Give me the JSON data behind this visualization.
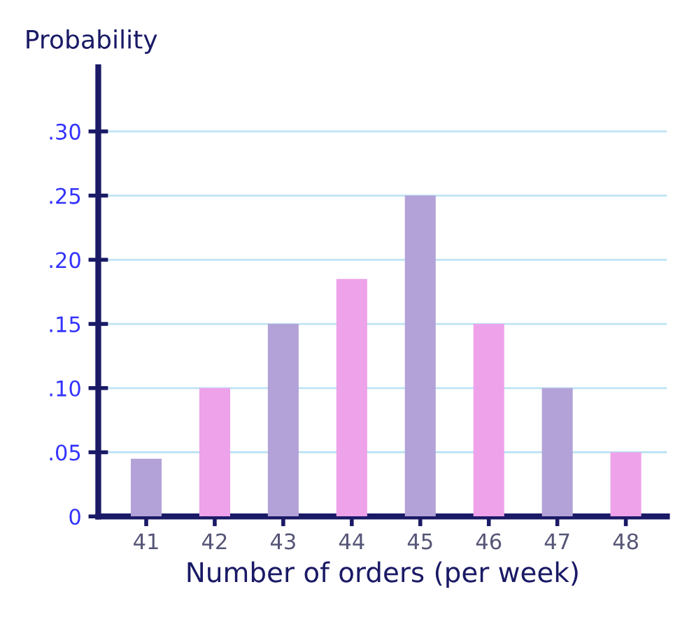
{
  "chart_data": {
    "type": "bar",
    "xlabel": "Number of orders (per week)",
    "ylabel": "Probability",
    "categories": [
      "41",
      "42",
      "43",
      "44",
      "45",
      "46",
      "47",
      "48"
    ],
    "values": [
      0.045,
      0.1,
      0.15,
      0.185,
      0.25,
      0.15,
      0.1,
      0.05
    ],
    "colors": [
      "#b3a2d8",
      "#eea2ea",
      "#b3a2d8",
      "#eea2ea",
      "#b3a2d8",
      "#eea2ea",
      "#b3a2d8",
      "#eea2ea"
    ],
    "ylim": [
      0,
      0.35
    ],
    "yticks": [
      0,
      {
        "value": 0.05,
        "label": ".05"
      },
      {
        "value": 0.1,
        "label": ".10"
      },
      {
        "value": 0.15,
        "label": ".15"
      },
      {
        "value": 0.2,
        "label": ".20"
      },
      {
        "value": 0.25,
        "label": ".25"
      },
      {
        "value": 0.3,
        "label": ".30"
      }
    ],
    "grid": "y",
    "legend": false
  }
}
